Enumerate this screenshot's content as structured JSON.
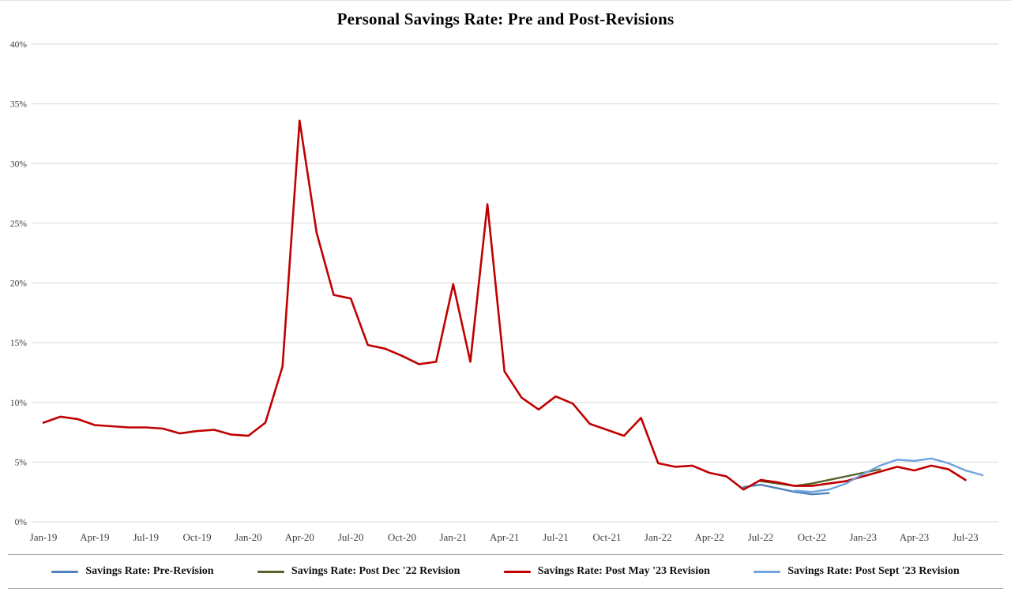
{
  "page_title": "Personal Savings Rate: Pre and Post-Revisions",
  "chart_data": {
    "type": "line",
    "title": "Personal Savings Rate: Pre and Post-Revisions",
    "xlabel": "",
    "ylabel": "",
    "ylim": [
      0,
      40
    ],
    "yticks": [
      0,
      5,
      10,
      15,
      20,
      25,
      30,
      35,
      40
    ],
    "ytick_suffix": "%",
    "grid": "horizontal",
    "legend_position": "bottom",
    "xtick_every": 3,
    "months": [
      "Jan-19",
      "Feb-19",
      "Mar-19",
      "Apr-19",
      "May-19",
      "Jun-19",
      "Jul-19",
      "Aug-19",
      "Sep-19",
      "Oct-19",
      "Nov-19",
      "Dec-19",
      "Jan-20",
      "Feb-20",
      "Mar-20",
      "Apr-20",
      "May-20",
      "Jun-20",
      "Jul-20",
      "Aug-20",
      "Sep-20",
      "Oct-20",
      "Nov-20",
      "Dec-20",
      "Jan-21",
      "Feb-21",
      "Mar-21",
      "Apr-21",
      "May-21",
      "Jun-21",
      "Jul-21",
      "Aug-21",
      "Sep-21",
      "Oct-21",
      "Nov-21",
      "Dec-21",
      "Jan-22",
      "Feb-22",
      "Mar-22",
      "Apr-22",
      "May-22",
      "Jun-22",
      "Jul-22",
      "Aug-22",
      "Sep-22",
      "Oct-22",
      "Nov-22",
      "Dec-22",
      "Jan-23",
      "Feb-23",
      "Mar-23",
      "Apr-23",
      "May-23",
      "Jun-23",
      "Jul-23",
      "Aug-23"
    ],
    "series": [
      {
        "name": "Savings Rate: Pre-Revision",
        "color": "#4f81bd",
        "start_index": 41,
        "values": [
          2.9,
          3.1,
          2.8,
          2.5,
          2.3,
          2.4
        ]
      },
      {
        "name": "Savings Rate: Post Dec '22 Revision",
        "color": "#54632c",
        "start_index": 42,
        "values": [
          3.4,
          3.2,
          3.0,
          3.2,
          3.5,
          3.8,
          4.1,
          4.4
        ]
      },
      {
        "name": "Savings Rate: Post May '23 Revision",
        "color": "#c00000",
        "start_index": 0,
        "values": [
          8.3,
          8.8,
          8.6,
          8.1,
          8.0,
          7.9,
          7.9,
          7.8,
          7.4,
          7.6,
          7.7,
          7.3,
          7.2,
          8.3,
          13.0,
          33.6,
          24.2,
          19.0,
          18.7,
          14.8,
          14.5,
          13.9,
          13.2,
          13.4,
          19.9,
          13.4,
          26.6,
          12.6,
          10.4,
          9.4,
          10.5,
          9.9,
          8.2,
          7.7,
          7.2,
          8.7,
          4.9,
          4.6,
          4.7,
          4.1,
          3.8,
          2.7,
          3.5,
          3.3,
          3.0,
          3.0,
          3.2,
          3.4,
          3.8,
          4.2,
          4.6,
          4.3,
          4.7,
          4.4,
          3.5
        ]
      },
      {
        "name": "Savings Rate: Post Sept '23 Revision",
        "color": "#6fa3dc",
        "start_index": 44,
        "values": [
          2.6,
          2.5,
          2.7,
          3.2,
          4.0,
          4.7,
          5.2,
          5.1,
          5.3,
          4.9,
          4.3,
          3.9
        ]
      }
    ]
  }
}
